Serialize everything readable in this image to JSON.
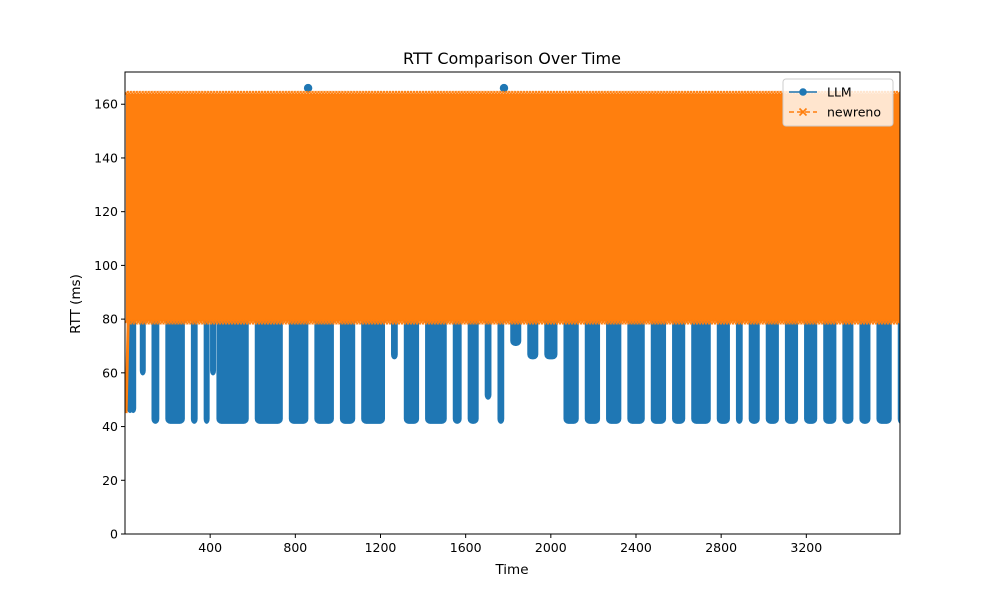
{
  "chart_data": {
    "type": "line",
    "title": "RTT Comparison Over Time",
    "xlabel": "Time",
    "ylabel": "RTT (ms)",
    "xlim": [
      0,
      3640
    ],
    "ylim": [
      0,
      172
    ],
    "xticks": [
      400,
      800,
      1200,
      1600,
      2000,
      2400,
      2800,
      3200
    ],
    "yticks": [
      0,
      20,
      40,
      60,
      80,
      100,
      120,
      140,
      160
    ],
    "grid": false,
    "legend": "top-right",
    "series": [
      {
        "name": "LLM",
        "color": "#1f77b4",
        "marker": "circle",
        "linestyle": "solid",
        "segments": [
          [
            0,
            45,
            80
          ],
          [
            15,
            45,
            164
          ],
          [
            60,
            59,
            164
          ],
          [
            115,
            41,
            164
          ],
          [
            180,
            41,
            164
          ],
          [
            300,
            41,
            164
          ],
          [
            360,
            41,
            164
          ],
          [
            390,
            59,
            164
          ],
          [
            420,
            41,
            164
          ],
          [
            600,
            41,
            164
          ],
          [
            760,
            41,
            164
          ],
          [
            880,
            41,
            164
          ],
          [
            1000,
            41,
            164
          ],
          [
            1100,
            41,
            164
          ],
          [
            1240,
            65,
            164
          ],
          [
            1300,
            41,
            164
          ],
          [
            1400,
            41,
            164
          ],
          [
            1530,
            41,
            164
          ],
          [
            1600,
            41,
            164
          ],
          [
            1680,
            50,
            164
          ],
          [
            1740,
            41,
            164
          ],
          [
            1800,
            70,
            164
          ],
          [
            1880,
            65,
            164
          ],
          [
            1960,
            65,
            164
          ],
          [
            2050,
            41,
            164
          ],
          [
            2150,
            41,
            164
          ],
          [
            2250,
            41,
            164
          ],
          [
            2350,
            41,
            164
          ],
          [
            2460,
            41,
            164
          ],
          [
            2560,
            41,
            164
          ],
          [
            2650,
            41,
            164
          ],
          [
            2770,
            41,
            164
          ],
          [
            2860,
            41,
            164
          ],
          [
            2920,
            41,
            164
          ],
          [
            3000,
            41,
            164
          ],
          [
            3090,
            41,
            164
          ],
          [
            3180,
            41,
            164
          ],
          [
            3270,
            41,
            164
          ],
          [
            3360,
            41,
            164
          ],
          [
            3440,
            41,
            164
          ],
          [
            3520,
            41,
            164
          ],
          [
            3620,
            41,
            164
          ]
        ],
        "outliers": [
          [
            860,
            166
          ],
          [
            1780,
            166
          ]
        ]
      },
      {
        "name": "newreno",
        "color": "#ff7f0e",
        "marker": "x",
        "linestyle": "dashed",
        "band": [
          0,
          3640,
          79,
          164
        ],
        "start": [
          [
            5,
            45
          ],
          [
            15,
            79
          ]
        ]
      }
    ]
  }
}
